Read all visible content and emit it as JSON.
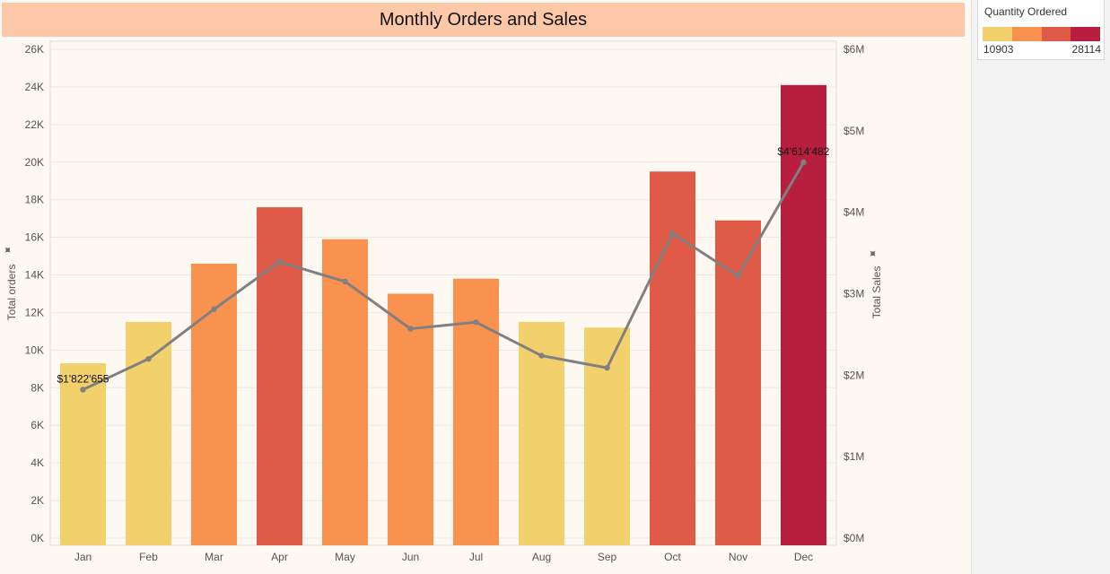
{
  "title": "Monthly Orders and Sales",
  "legend": {
    "title": "Quantity Ordered",
    "min_label": "10903",
    "max_label": "28114",
    "ramp": [
      "#f2d06b",
      "#f9914f",
      "#e05a48",
      "#b81e40"
    ]
  },
  "colors": {
    "line": "#808080",
    "grid": "#ece7e1",
    "background": "#fdf8f2",
    "title_band": "#fcc8a8"
  },
  "chart_data": {
    "type": "bar",
    "title": "Monthly Orders and Sales",
    "categories": [
      "Jan",
      "Feb",
      "Mar",
      "Apr",
      "May",
      "Jun",
      "Jul",
      "Aug",
      "Sep",
      "Oct",
      "Nov",
      "Dec"
    ],
    "ylabel": "Total orders",
    "y2label": "Total Sales",
    "ylim": [
      0,
      26000
    ],
    "y2lim": [
      0,
      6000000
    ],
    "yticks": [
      "0K",
      "2K",
      "4K",
      "6K",
      "8K",
      "10K",
      "12K",
      "14K",
      "16K",
      "18K",
      "20K",
      "22K",
      "24K",
      "26K"
    ],
    "y2ticks": [
      "$0M",
      "$1M",
      "$2M",
      "$3M",
      "$4M",
      "$5M",
      "$6M"
    ],
    "grid": true,
    "series": [
      {
        "name": "Total orders",
        "type": "bar",
        "axis": "left",
        "values": [
          9300,
          11500,
          14600,
          17600,
          15900,
          13000,
          13800,
          11500,
          11200,
          19500,
          16900,
          24100
        ],
        "colors": [
          "#f2d06b",
          "#f2d06b",
          "#f9914f",
          "#e05a48",
          "#f9914f",
          "#f9914f",
          "#f9914f",
          "#f2d06b",
          "#f2d06b",
          "#e05a48",
          "#e05a48",
          "#b81e40"
        ]
      },
      {
        "name": "Total Sales",
        "type": "line",
        "axis": "right",
        "values": [
          1822655,
          2200000,
          2810000,
          3390000,
          3150000,
          2570000,
          2650000,
          2240000,
          2090000,
          3740000,
          3220000,
          4614482
        ],
        "data_labels": [
          {
            "index": 0,
            "text": "$1'822'655"
          },
          {
            "index": 11,
            "text": "$4'614'482"
          }
        ]
      }
    ]
  }
}
